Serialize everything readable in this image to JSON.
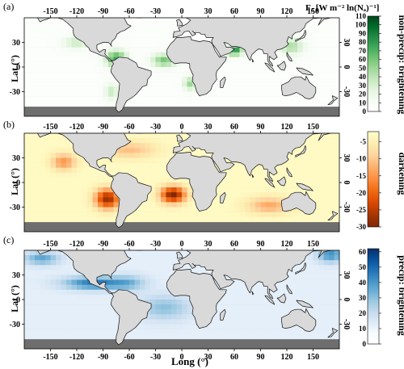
{
  "panels": [
    {
      "letter": "(a)",
      "colorbar_label": "non-precip: brightening",
      "colorbar_ticks": [
        "0",
        "10",
        "20",
        "30",
        "40",
        "50",
        "60",
        "70",
        "80",
        "90",
        "100",
        "110"
      ],
      "colorbar_colors": [
        "#ffffff",
        "#f7fcf5",
        "#e5f5e0",
        "#c7e9c0",
        "#a1d99b",
        "#74c476",
        "#41ab5d",
        "#238b45",
        "#006d2c",
        "#00441b"
      ],
      "cbar_min": 0,
      "cbar_max": 110
    },
    {
      "letter": "(b)",
      "colorbar_label": "darkening",
      "colorbar_ticks": [
        "-30",
        "-25",
        "-20",
        "-15",
        "-10",
        "-5"
      ],
      "colorbar_colors": [
        "#7f2704",
        "#a63603",
        "#d94801",
        "#f16913",
        "#fd8d3c",
        "#fdae6b",
        "#fdd49e",
        "#feedb0",
        "#ffffcc"
      ],
      "cbar_min": -30,
      "cbar_max": -2
    },
    {
      "letter": "(c)",
      "colorbar_label": "precip: brightening",
      "colorbar_ticks": [
        "0",
        "10",
        "20",
        "30",
        "40",
        "50",
        "60"
      ],
      "colorbar_colors": [
        "#ffffff",
        "#f7fbff",
        "#deebf7",
        "#c6dbef",
        "#9ecae1",
        "#6baed6",
        "#4292c6",
        "#2171b5",
        "#08519c",
        "#08306b"
      ],
      "cbar_min": 0,
      "cbar_max": 62
    }
  ],
  "colorbar_title": "F₀ [W m⁻² ln(Nₐ)⁻¹]",
  "lon_ticks": [
    "-150",
    "-120",
    "-90",
    "-60",
    "-30",
    "0",
    "30",
    "60",
    "90",
    "120",
    "150"
  ],
  "lat_ticks": [
    "30",
    "0",
    "-30"
  ],
  "ylabel": "Lat (°)",
  "xlabel": "Long (°)",
  "colors": {
    "land": "#d9d9d9",
    "masked": "#6e6e6e",
    "coast": "#111111"
  }
}
